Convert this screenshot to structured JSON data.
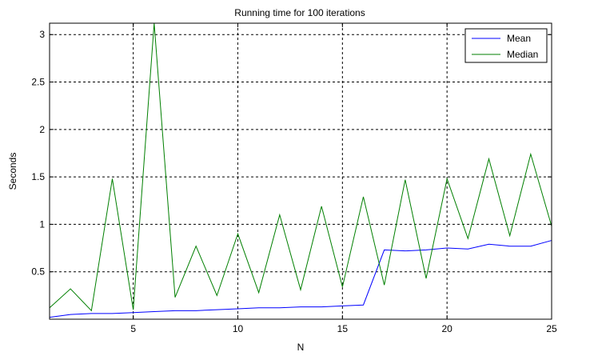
{
  "chart_data": {
    "type": "line",
    "title": "Running time for 100 iterations",
    "xlabel": "N",
    "ylabel": "Seconds",
    "xlim": [
      1,
      25
    ],
    "ylim": [
      0,
      3.12
    ],
    "grid": true,
    "legend_position": "top-right",
    "xticks": [
      5,
      10,
      15,
      20,
      25
    ],
    "yticks": [
      0.5,
      1,
      1.5,
      2,
      2.5,
      3
    ],
    "x": [
      1,
      2,
      3,
      4,
      5,
      6,
      7,
      8,
      9,
      10,
      11,
      12,
      13,
      14,
      15,
      16,
      17,
      18,
      19,
      20,
      21,
      22,
      23,
      24,
      25
    ],
    "series": [
      {
        "name": "Mean",
        "color": "#0000ff",
        "values": [
          0.02,
          0.05,
          0.06,
          0.06,
          0.07,
          0.08,
          0.09,
          0.09,
          0.1,
          0.11,
          0.12,
          0.12,
          0.13,
          0.13,
          0.14,
          0.15,
          0.73,
          0.72,
          0.73,
          0.75,
          0.74,
          0.79,
          0.77,
          0.77,
          0.83
        ]
      },
      {
        "name": "Median",
        "color": "#007f00",
        "values": [
          0.12,
          0.32,
          0.09,
          1.48,
          0.1,
          3.12,
          0.23,
          0.77,
          0.25,
          0.9,
          0.28,
          1.1,
          0.31,
          1.19,
          0.34,
          1.29,
          0.36,
          1.47,
          0.43,
          1.48,
          0.85,
          1.69,
          0.88,
          1.74,
          0.98
        ]
      }
    ]
  }
}
